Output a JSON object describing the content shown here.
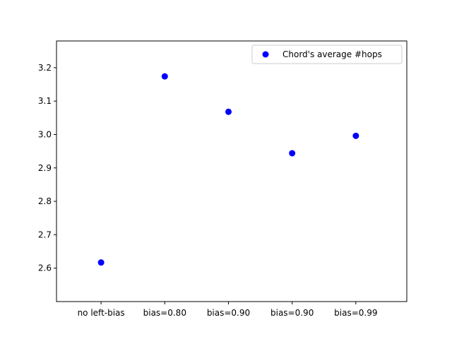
{
  "chart_data": {
    "type": "scatter",
    "categories": [
      "no left-bias",
      "bias=0.80",
      "bias=0.90",
      "bias=0.90",
      "bias=0.99"
    ],
    "series": [
      {
        "name": "Chord's average #hops",
        "values": [
          2.617,
          3.174,
          3.068,
          2.944,
          2.996
        ],
        "color": "#0000ff",
        "marker": "circle"
      }
    ],
    "y_ticks": [
      2.6,
      2.7,
      2.8,
      2.9,
      3.0,
      3.1,
      3.2
    ],
    "y_tick_labels": [
      "2.6",
      "2.7",
      "2.8",
      "2.9",
      "3.0",
      "3.1",
      "3.2"
    ],
    "ylim": [
      2.5,
      3.28
    ],
    "xlim": [
      -0.7,
      4.8
    ],
    "legend_position": "top-right",
    "grid": false
  }
}
